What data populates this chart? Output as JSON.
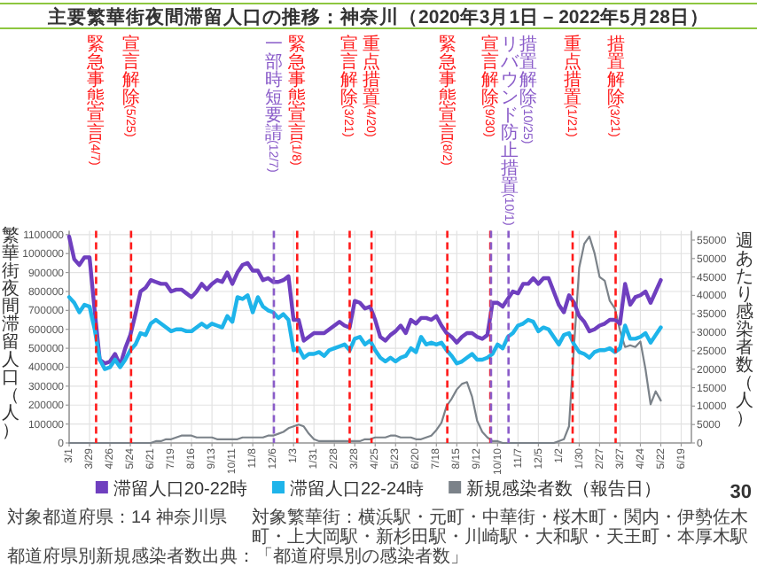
{
  "chart_data": {
    "type": "line",
    "title": "主要繁華街夜間滞留人口の推移：神奈川（2020年3月1日－2022年5月28日）",
    "ylabel": "繁華街夜間滞留人口（人）",
    "y2label": "週あたり感染者数（人）",
    "x": [
      "2020-03-01",
      "2020-03-08",
      "2020-03-15",
      "2020-03-22",
      "2020-03-29",
      "2020-04-05",
      "2020-04-12",
      "2020-04-19",
      "2020-04-26",
      "2020-05-03",
      "2020-05-10",
      "2020-05-17",
      "2020-05-24",
      "2020-05-31",
      "2020-06-07",
      "2020-06-14",
      "2020-06-21",
      "2020-06-28",
      "2020-07-05",
      "2020-07-12",
      "2020-07-19",
      "2020-07-26",
      "2020-08-02",
      "2020-08-09",
      "2020-08-16",
      "2020-08-23",
      "2020-08-30",
      "2020-09-06",
      "2020-09-13",
      "2020-09-20",
      "2020-09-27",
      "2020-10-04",
      "2020-10-11",
      "2020-10-18",
      "2020-10-25",
      "2020-11-01",
      "2020-11-08",
      "2020-11-15",
      "2020-11-22",
      "2020-11-29",
      "2020-12-06",
      "2020-12-13",
      "2020-12-20",
      "2020-12-27",
      "2021-01-03",
      "2021-01-10",
      "2021-01-17",
      "2021-01-24",
      "2021-01-31",
      "2021-02-07",
      "2021-02-14",
      "2021-02-21",
      "2021-02-28",
      "2021-03-07",
      "2021-03-14",
      "2021-03-21",
      "2021-03-28",
      "2021-04-04",
      "2021-04-11",
      "2021-04-18",
      "2021-04-25",
      "2021-05-02",
      "2021-05-09",
      "2021-05-16",
      "2021-05-23",
      "2021-05-30",
      "2021-06-06",
      "2021-06-13",
      "2021-06-20",
      "2021-06-27",
      "2021-07-04",
      "2021-07-11",
      "2021-07-18",
      "2021-07-25",
      "2021-08-01",
      "2021-08-08",
      "2021-08-15",
      "2021-08-22",
      "2021-08-29",
      "2021-09-05",
      "2021-09-12",
      "2021-09-19",
      "2021-09-26",
      "2021-10-03",
      "2021-10-10",
      "2021-10-17",
      "2021-10-24",
      "2021-10-31",
      "2021-11-07",
      "2021-11-14",
      "2021-11-21",
      "2021-11-28",
      "2021-12-05",
      "2021-12-12",
      "2021-12-19",
      "2021-12-26",
      "2022-01-02",
      "2022-01-09",
      "2022-01-16",
      "2022-01-23",
      "2022-01-30",
      "2022-02-06",
      "2022-02-13",
      "2022-02-20",
      "2022-02-27",
      "2022-03-06",
      "2022-03-13",
      "2022-03-20",
      "2022-03-27",
      "2022-04-03",
      "2022-04-10",
      "2022-04-17",
      "2022-04-24",
      "2022-05-01",
      "2022-05-08",
      "2022-05-15",
      "2022-05-22"
    ],
    "xlim": [
      "2020-03-01",
      "2022-07-03"
    ],
    "xticks": [
      {
        "value": "2020-03-01",
        "label": "3/1"
      },
      {
        "value": "2020-03-29",
        "label": "3/29"
      },
      {
        "value": "2020-04-26",
        "label": "4/26"
      },
      {
        "value": "2020-05-24",
        "label": "5/24"
      },
      {
        "value": "2020-06-21",
        "label": "6/21"
      },
      {
        "value": "2020-07-19",
        "label": "7/19"
      },
      {
        "value": "2020-08-16",
        "label": "8/16"
      },
      {
        "value": "2020-09-13",
        "label": "9/13"
      },
      {
        "value": "2020-10-11",
        "label": "10/11"
      },
      {
        "value": "2020-11-08",
        "label": "11/8"
      },
      {
        "value": "2020-12-06",
        "label": "12/6"
      },
      {
        "value": "2021-01-03",
        "label": "1/3"
      },
      {
        "value": "2021-01-31",
        "label": "1/31"
      },
      {
        "value": "2021-02-28",
        "label": "2/28"
      },
      {
        "value": "2021-03-28",
        "label": "3/28"
      },
      {
        "value": "2021-04-25",
        "label": "4/25"
      },
      {
        "value": "2021-05-23",
        "label": "5/23"
      },
      {
        "value": "2021-06-20",
        "label": "6/20"
      },
      {
        "value": "2021-07-18",
        "label": "7/18"
      },
      {
        "value": "2021-08-15",
        "label": "8/15"
      },
      {
        "value": "2021-09-12",
        "label": "9/12"
      },
      {
        "value": "2021-10-10",
        "label": "10/10"
      },
      {
        "value": "2021-11-07",
        "label": "11/7"
      },
      {
        "value": "2021-12-05",
        "label": "12/5"
      },
      {
        "value": "2022-01-02",
        "label": "1/2"
      },
      {
        "value": "2022-01-30",
        "label": "1/30"
      },
      {
        "value": "2022-02-27",
        "label": "2/27"
      },
      {
        "value": "2022-03-27",
        "label": "3/27"
      },
      {
        "value": "2022-04-24",
        "label": "4/24"
      },
      {
        "value": "2022-05-22",
        "label": "5/22"
      },
      {
        "value": "2022-06-19",
        "label": "6/19"
      }
    ],
    "ylim": [
      0,
      1120000
    ],
    "yticks": [
      0,
      100000,
      200000,
      300000,
      400000,
      500000,
      600000,
      700000,
      800000,
      900000,
      1000000,
      1100000
    ],
    "y2lim": [
      0,
      57500
    ],
    "y2ticks": [
      0,
      5000,
      10000,
      15000,
      20000,
      25000,
      30000,
      35000,
      40000,
      45000,
      50000,
      55000
    ],
    "series": [
      {
        "name": "滞留人口20-22時",
        "color": "#6f3fbf",
        "values": [
          1090000,
          970000,
          940000,
          980000,
          980000,
          700000,
          440000,
          420000,
          430000,
          470000,
          410000,
          500000,
          570000,
          680000,
          800000,
          820000,
          860000,
          850000,
          840000,
          840000,
          800000,
          810000,
          810000,
          790000,
          770000,
          800000,
          840000,
          810000,
          840000,
          860000,
          850000,
          900000,
          840000,
          900000,
          940000,
          950000,
          910000,
          910000,
          860000,
          870000,
          850000,
          850000,
          860000,
          880000,
          650000,
          650000,
          540000,
          560000,
          580000,
          580000,
          580000,
          600000,
          620000,
          640000,
          620000,
          610000,
          750000,
          740000,
          710000,
          720000,
          650000,
          560000,
          540000,
          570000,
          590000,
          620000,
          580000,
          650000,
          630000,
          660000,
          660000,
          650000,
          670000,
          620000,
          580000,
          560000,
          530000,
          560000,
          580000,
          580000,
          560000,
          550000,
          570000,
          740000,
          740000,
          720000,
          760000,
          800000,
          790000,
          840000,
          840000,
          870000,
          840000,
          870000,
          870000,
          800000,
          730000,
          690000,
          780000,
          740000,
          670000,
          640000,
          590000,
          600000,
          620000,
          630000,
          650000,
          650000,
          630000,
          840000,
          730000,
          770000,
          780000,
          800000,
          740000,
          800000,
          860000
        ]
      },
      {
        "name": "滞留人口22-24時",
        "color": "#1eb4ea",
        "values": [
          770000,
          740000,
          690000,
          730000,
          720000,
          600000,
          440000,
          390000,
          400000,
          440000,
          400000,
          440000,
          490000,
          520000,
          580000,
          570000,
          630000,
          650000,
          630000,
          610000,
          590000,
          600000,
          600000,
          590000,
          590000,
          610000,
          630000,
          610000,
          630000,
          620000,
          610000,
          670000,
          640000,
          770000,
          760000,
          780000,
          690000,
          770000,
          720000,
          700000,
          690000,
          660000,
          680000,
          650000,
          490000,
          500000,
          450000,
          470000,
          470000,
          480000,
          460000,
          490000,
          500000,
          510000,
          520000,
          490000,
          550000,
          560000,
          520000,
          540000,
          490000,
          450000,
          430000,
          450000,
          430000,
          450000,
          460000,
          500000,
          480000,
          560000,
          520000,
          530000,
          520000,
          530000,
          490000,
          460000,
          420000,
          430000,
          450000,
          470000,
          440000,
          440000,
          450000,
          470000,
          520000,
          500000,
          560000,
          580000,
          620000,
          630000,
          650000,
          640000,
          590000,
          610000,
          600000,
          560000,
          520000,
          570000,
          580000,
          520000,
          480000,
          470000,
          450000,
          480000,
          490000,
          490000,
          500000,
          480000,
          500000,
          620000,
          550000,
          550000,
          560000,
          580000,
          530000,
          570000,
          610000
        ]
      },
      {
        "name": "新規感染者数（報告日）",
        "color": "#7b8289",
        "axis": "y2",
        "values": [
          0,
          0,
          0,
          0,
          0,
          0,
          0,
          0,
          0,
          0,
          0,
          0,
          0,
          0,
          0,
          0,
          0,
          500,
          500,
          1000,
          1000,
          1500,
          2000,
          2000,
          2000,
          1500,
          1500,
          1500,
          1500,
          1000,
          1000,
          1000,
          1000,
          1000,
          1500,
          1500,
          1500,
          1500,
          1500,
          2000,
          2000,
          2500,
          3000,
          4000,
          4500,
          5000,
          4500,
          2500,
          1000,
          500,
          500,
          500,
          500,
          500,
          500,
          500,
          500,
          500,
          1000,
          1000,
          1500,
          1500,
          1500,
          2000,
          2000,
          1500,
          1500,
          1500,
          1000,
          1000,
          1500,
          2000,
          3500,
          5500,
          10000,
          12000,
          14500,
          16000,
          16500,
          12500,
          6000,
          3000,
          1500,
          500,
          500,
          0,
          0,
          0,
          0,
          0,
          0,
          0,
          0,
          0,
          0,
          0,
          500,
          1000,
          4500,
          26500,
          47500,
          54000,
          56000,
          51500,
          45000,
          44000,
          38500,
          36500,
          30500,
          26000,
          26500,
          26000,
          27500,
          20000,
          10500,
          14000,
          11500
        ]
      }
    ],
    "ref_lines": [
      {
        "axis": "x",
        "value": "2020-04-07",
        "label": "緊急事態宣言(4/7)",
        "color": "#ff1a1a",
        "line_style": "dashed"
      },
      {
        "axis": "x",
        "value": "2020-05-25",
        "label": "宣言解除(5/25)",
        "color": "#ff1a1a",
        "line_style": "dashed"
      },
      {
        "axis": "x",
        "value": "2020-12-07",
        "label": "一部時短要請(12/7)",
        "color": "#8a5cc9",
        "line_style": "dashed"
      },
      {
        "axis": "x",
        "value": "2021-01-08",
        "label": "緊急事態宣言(1/8)",
        "color": "#ff1a1a",
        "line_style": "dashed"
      },
      {
        "axis": "x",
        "value": "2021-03-21",
        "label": "宣言解除(3/21)",
        "color": "#ff1a1a",
        "line_style": "dashed"
      },
      {
        "axis": "x",
        "value": "2021-04-20",
        "label": "重点措置(4/20)",
        "color": "#ff1a1a",
        "line_style": "dashed"
      },
      {
        "axis": "x",
        "value": "2021-08-02",
        "label": "緊急事態宣言(8/2)",
        "color": "#ff1a1a",
        "line_style": "dashed"
      },
      {
        "axis": "x",
        "value": "2021-09-30",
        "label": "宣言解除(9/30)",
        "color": "#ff1a1a",
        "line_style": "dashed"
      },
      {
        "axis": "x",
        "value": "2021-10-01",
        "label": "リバウンド防止措置(10/1)",
        "color": "#8a5cc9",
        "line_style": "dashed"
      },
      {
        "axis": "x",
        "value": "2021-10-25",
        "label": "措置解除(10/25)",
        "color": "#8a5cc9",
        "line_style": "dashed"
      },
      {
        "axis": "x",
        "value": "2022-01-21",
        "label": "重点措置(1/21)",
        "color": "#ff1a1a",
        "line_style": "dashed"
      },
      {
        "axis": "x",
        "value": "2022-03-21",
        "label": "措置解除(3/21)",
        "color": "#ff1a1a",
        "line_style": "dashed"
      }
    ],
    "annotations": [
      "対象都道府県：14 神奈川県",
      "対象繁華街：横浜駅・元町・中華街・桜木町・関内・伊勢佐木町・上大岡駅・新杉田駅・川崎駅・大和駅・天王町・本厚木駅",
      "都道府県別新規感染者数出典：「都道府県別の感染者数」",
      "30"
    ],
    "legend": "bottom",
    "grid": true
  }
}
